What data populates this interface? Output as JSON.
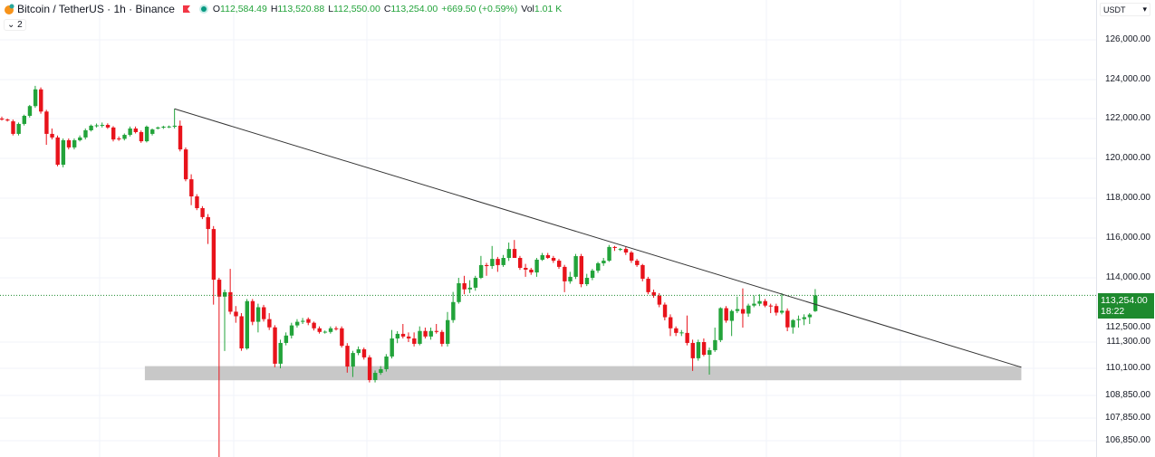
{
  "legend": {
    "symbol": "Bitcoin / TetherUS · 1h · Binance",
    "o_label": "O",
    "o": "112,584.49",
    "h_label": "H",
    "h": "113,520.88",
    "l_label": "L",
    "l": "112,550.00",
    "c_label": "C",
    "c": "113,254.00",
    "change": "+669.50 (+0.59%)",
    "vol_label": "Vol",
    "vol": "1.01 K",
    "collapse_label": "2",
    "icons": [
      "bitcoin-icon",
      "flag-icon",
      "status-dot-icon",
      "chevron-down-icon"
    ]
  },
  "price_axis": {
    "currency": "USDT",
    "last_price": "113,254.00",
    "countdown": "18:22"
  },
  "colors": {
    "up": "#22a33a",
    "down": "#e8131b",
    "last_price": "#1e8a2e",
    "zone": "#c8c8c8",
    "trendline": "#333333"
  },
  "chart_data": {
    "type": "candlestick",
    "title": "Bitcoin / TetherUS · 1h · Binance",
    "y_ticks": [
      "126,000.00",
      "124,000.00",
      "122,000.00",
      "120,000.00",
      "118,000.00",
      "116,000.00",
      "114,000.00",
      "112,500.00",
      "111,300.00",
      "110,100.00",
      "108,850.00",
      "107,850.00",
      "106,850.00"
    ],
    "y_tick_values": [
      126000,
      124000,
      122000,
      120000,
      118000,
      116000,
      114000,
      112500,
      111300,
      110100,
      108850,
      107850,
      106850
    ],
    "grid": true,
    "last_price": 113254,
    "candles_ohlc": [
      [
        122000,
        122100,
        121900,
        121950
      ],
      [
        121950,
        122000,
        121850,
        121900
      ],
      [
        121860,
        121950,
        121150,
        121230
      ],
      [
        121230,
        121800,
        121150,
        121730
      ],
      [
        121730,
        122200,
        121650,
        122140
      ],
      [
        122140,
        122700,
        122050,
        122640
      ],
      [
        122640,
        123680,
        122550,
        123500
      ],
      [
        123500,
        123600,
        122250,
        122360
      ],
      [
        122360,
        122450,
        120680,
        121230
      ],
      [
        121230,
        121500,
        120950,
        121050
      ],
      [
        121050,
        121150,
        119600,
        119680
      ],
      [
        119680,
        121000,
        119550,
        120910
      ],
      [
        120910,
        121000,
        120450,
        120550
      ],
      [
        120550,
        121000,
        120450,
        120910
      ],
      [
        120910,
        121150,
        120850,
        121050
      ],
      [
        121050,
        121500,
        120950,
        121410
      ],
      [
        121410,
        121700,
        121350,
        121640
      ],
      [
        121640,
        121750,
        121550,
        121660
      ],
      [
        121640,
        121800,
        121550,
        121680
      ],
      [
        121680,
        121760,
        121480,
        121550
      ],
      [
        121550,
        121620,
        120850,
        120950
      ],
      [
        121000,
        121100,
        120880,
        120980
      ],
      [
        120980,
        121250,
        120900,
        121180
      ],
      [
        121180,
        121600,
        121100,
        121500
      ],
      [
        121500,
        121600,
        121250,
        121320
      ],
      [
        121320,
        121400,
        120780,
        120860
      ],
      [
        120860,
        121650,
        120800,
        121590
      ],
      [
        121230,
        121500,
        121150,
        121450
      ],
      [
        121500,
        121600,
        121450,
        121550
      ],
      [
        121550,
        121640,
        121480,
        121590
      ],
      [
        121590,
        121650,
        121520,
        121600
      ],
      [
        121590,
        122500,
        121500,
        121640
      ],
      [
        121640,
        121900,
        120350,
        120450
      ],
      [
        120450,
        120550,
        118850,
        118950
      ],
      [
        118950,
        119200,
        117650,
        118090
      ],
      [
        118090,
        118200,
        117400,
        117500
      ],
      [
        117500,
        117600,
        116950,
        117050
      ],
      [
        117050,
        117200,
        115700,
        116450
      ],
      [
        116450,
        116600,
        112860,
        113920
      ],
      [
        113920,
        114000,
        105500,
        113200
      ],
      [
        113200,
        113500,
        110890,
        113390
      ],
      [
        113390,
        114450,
        112450,
        112560
      ],
      [
        112560,
        112800,
        112100,
        112370
      ],
      [
        112370,
        112500,
        110900,
        111010
      ],
      [
        111010,
        113100,
        110950,
        113010
      ],
      [
        113010,
        113100,
        112000,
        112140
      ],
      [
        112140,
        112900,
        111700,
        112750
      ],
      [
        112750,
        112850,
        112150,
        112250
      ],
      [
        112250,
        112500,
        111800,
        111910
      ],
      [
        111910,
        112000,
        110150,
        110310
      ],
      [
        110310,
        111400,
        110100,
        111260
      ],
      [
        111260,
        111700,
        111150,
        111570
      ],
      [
        111570,
        112100,
        111450,
        111990
      ],
      [
        111990,
        112250,
        111900,
        112140
      ],
      [
        112140,
        112300,
        112050,
        112180
      ],
      [
        112250,
        112320,
        112000,
        112100
      ],
      [
        112100,
        112150,
        111780,
        111870
      ],
      [
        111870,
        111950,
        111650,
        111720
      ],
      [
        111720,
        111780,
        111650,
        111730
      ],
      [
        111720,
        111950,
        111650,
        111870
      ],
      [
        111870,
        111950,
        111780,
        111860
      ],
      [
        111870,
        111950,
        111050,
        111130
      ],
      [
        111130,
        111250,
        109900,
        110180
      ],
      [
        110180,
        110900,
        109700,
        110800
      ],
      [
        110800,
        111100,
        110700,
        110970
      ],
      [
        110970,
        111050,
        110500,
        110600
      ],
      [
        110600,
        110700,
        109450,
        109560
      ],
      [
        109560,
        110000,
        109450,
        109890
      ],
      [
        109890,
        110200,
        109800,
        110060
      ],
      [
        110060,
        110750,
        109950,
        110640
      ],
      [
        110640,
        111800,
        110550,
        111450
      ],
      [
        111450,
        111750,
        111250,
        111640
      ],
      [
        111640,
        112050,
        111450,
        111530
      ],
      [
        111530,
        111700,
        111300,
        111450
      ],
      [
        111450,
        111700,
        111100,
        111220
      ],
      [
        111220,
        111950,
        111150,
        111760
      ],
      [
        111760,
        111900,
        111450,
        111530
      ],
      [
        111530,
        111900,
        111400,
        111760
      ],
      [
        111760,
        112050,
        111650,
        111720
      ],
      [
        111720,
        111800,
        111100,
        111220
      ],
      [
        111220,
        112550,
        111100,
        112210
      ],
      [
        112210,
        113400,
        112100,
        112970
      ],
      [
        112970,
        114000,
        112900,
        113770
      ],
      [
        113770,
        114100,
        113300,
        113510
      ],
      [
        113510,
        113900,
        113350,
        113580
      ],
      [
        113580,
        114100,
        113450,
        114000
      ],
      [
        114000,
        115100,
        113950,
        114640
      ],
      [
        114640,
        114750,
        114100,
        114590
      ],
      [
        114590,
        115600,
        114450,
        114950
      ],
      [
        114950,
        115050,
        114300,
        114640
      ],
      [
        114640,
        115150,
        114550,
        115000
      ],
      [
        115000,
        115770,
        114850,
        115450
      ],
      [
        115450,
        115900,
        115000,
        115000
      ],
      [
        115000,
        115100,
        114400,
        114500
      ],
      [
        114500,
        114700,
        114050,
        114410
      ],
      [
        114410,
        114500,
        114150,
        114270
      ],
      [
        114270,
        115000,
        114050,
        114910
      ],
      [
        114910,
        115250,
        114850,
        115140
      ],
      [
        115140,
        115250,
        114950,
        115000
      ],
      [
        115000,
        115100,
        114750,
        114860
      ],
      [
        114860,
        114950,
        114450,
        114550
      ],
      [
        114550,
        114650,
        113390,
        113850
      ],
      [
        113850,
        114300,
        113750,
        114050
      ],
      [
        114050,
        115200,
        113950,
        115090
      ],
      [
        115090,
        115200,
        113600,
        113730
      ],
      [
        113730,
        114200,
        113650,
        114000
      ],
      [
        114000,
        114450,
        113900,
        114360
      ],
      [
        114360,
        114800,
        114250,
        114730
      ],
      [
        114730,
        115000,
        114600,
        114860
      ],
      [
        114860,
        115650,
        114800,
        115550
      ],
      [
        115550,
        115600,
        115350,
        115500
      ],
      [
        115450,
        115500,
        115350,
        115450
      ],
      [
        115450,
        115550,
        115150,
        115270
      ],
      [
        115270,
        115350,
        114750,
        114860
      ],
      [
        114860,
        114950,
        114550,
        114640
      ],
      [
        114640,
        114700,
        113850,
        113960
      ],
      [
        113960,
        114050,
        113300,
        113390
      ],
      [
        113390,
        113500,
        113150,
        113240
      ],
      [
        113240,
        113350,
        112750,
        112860
      ],
      [
        112860,
        112950,
        112200,
        112330
      ],
      [
        112330,
        112450,
        111550,
        111870
      ],
      [
        111870,
        111950,
        111550,
        111680
      ],
      [
        111680,
        111800,
        111550,
        111700
      ],
      [
        111680,
        112400,
        111150,
        111260
      ],
      [
        111260,
        111400,
        109980,
        110560
      ],
      [
        110560,
        111400,
        110450,
        111300
      ],
      [
        111300,
        111450,
        110650,
        110720
      ],
      [
        110720,
        111050,
        109810,
        110930
      ],
      [
        110930,
        111900,
        110850,
        111380
      ],
      [
        111380,
        112750,
        111300,
        112710
      ],
      [
        112710,
        112800,
        112100,
        112190
      ],
      [
        112180,
        112650,
        111550,
        112590
      ],
      [
        112590,
        113200,
        112500,
        112670
      ],
      [
        112670,
        113550,
        111900,
        112480
      ],
      [
        112480,
        112900,
        112350,
        112820
      ],
      [
        112820,
        113250,
        112750,
        112900
      ],
      [
        112900,
        113300,
        112800,
        113010
      ],
      [
        113010,
        113100,
        112750,
        112820
      ],
      [
        112820,
        112900,
        112500,
        112800
      ],
      [
        112800,
        112900,
        112400,
        112520
      ],
      [
        112520,
        113350,
        112450,
        112600
      ],
      [
        112600,
        112700,
        111750,
        111910
      ],
      [
        111910,
        112250,
        111650,
        112210
      ],
      [
        112210,
        112400,
        111900,
        112250
      ],
      [
        112250,
        112450,
        112000,
        112330
      ],
      [
        112330,
        112500,
        112050,
        112440
      ],
      [
        112584.49,
        113520.88,
        112550,
        113254
      ]
    ],
    "annotations": {
      "trendline": {
        "from": {
          "bar": 31,
          "price": 122500
        },
        "to": {
          "bar": 183,
          "price": 110150
        }
      },
      "support_zone": {
        "from_bar": 26,
        "to_bar": 183,
        "price_low": 109550,
        "price_high": 110200
      }
    }
  }
}
